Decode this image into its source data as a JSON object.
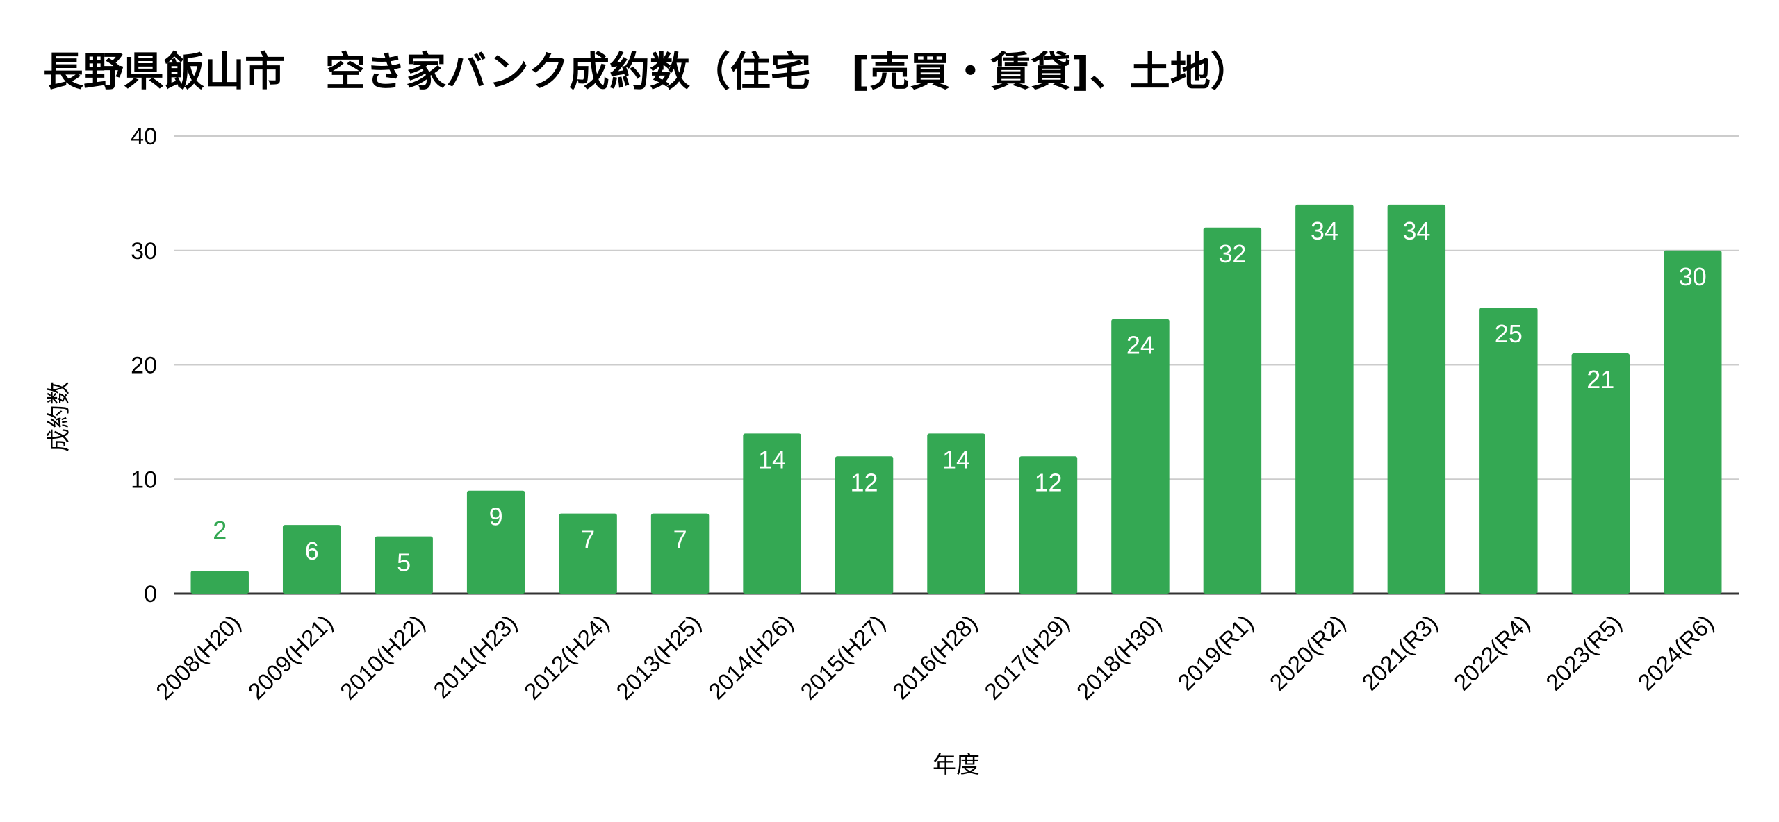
{
  "chart_data": {
    "type": "bar",
    "title": "長野県飯山市　空き家バンク成約数（住宅　[売買・賃貸]、土地）",
    "xlabel": "年度",
    "ylabel": "成約数",
    "categories": [
      "2008(H20)",
      "2009(H21)",
      "2010(H22)",
      "2011(H23)",
      "2012(H24)",
      "2013(H25)",
      "2014(H26)",
      "2015(H27)",
      "2016(H28)",
      "2017(H29)",
      "2018(H30)",
      "2019(R1)",
      "2020(R2)",
      "2021(R3)",
      "2022(R4)",
      "2023(R5)",
      "2024(R6)"
    ],
    "values": [
      2,
      6,
      5,
      9,
      7,
      7,
      14,
      12,
      14,
      12,
      24,
      32,
      34,
      34,
      25,
      21,
      30
    ],
    "ylim": [
      0,
      40
    ],
    "yticks": [
      0,
      10,
      20,
      30,
      40
    ],
    "grid": true,
    "legend": "none",
    "colors": {
      "bar": "#34a853",
      "label_inside": "#ffffff",
      "label_outside": "#34a853",
      "gridline": "#cccccc",
      "baseline": "#333333"
    }
  }
}
